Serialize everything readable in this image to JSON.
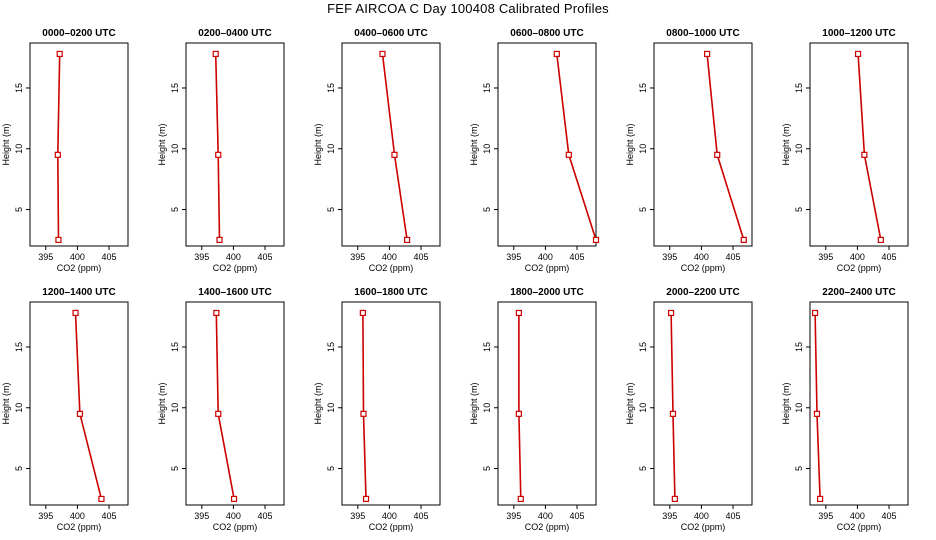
{
  "title": "FEF AIRCOA C  Day 100408  Calibrated Profiles",
  "chart_data": {
    "type": "line",
    "xlabel": "CO2 (ppm)",
    "ylabel": "Height (m)",
    "xlim": [
      392.5,
      408
    ],
    "ylim": [
      2,
      18.7
    ],
    "xticks": [
      395,
      400,
      405
    ],
    "yticks": [
      5,
      10,
      15
    ],
    "line_color": "#cc0000",
    "panels": [
      {
        "title": "0000–0200 UTC",
        "series": [
          {
            "x": [
              397.0,
              396.9,
              397.2
            ],
            "y": [
              2.5,
              9.5,
              17.8
            ]
          }
        ]
      },
      {
        "title": "0200–0400 UTC",
        "series": [
          {
            "x": [
              397.8,
              397.6,
              397.2
            ],
            "y": [
              2.5,
              9.5,
              17.8
            ]
          }
        ]
      },
      {
        "title": "0400–0600 UTC",
        "series": [
          {
            "x": [
              402.8,
              400.8,
              398.9
            ],
            "y": [
              2.5,
              9.5,
              17.8
            ]
          }
        ]
      },
      {
        "title": "0600–0800 UTC",
        "series": [
          {
            "x": [
              408.0,
              403.7,
              401.8
            ],
            "y": [
              2.5,
              9.5,
              17.8
            ]
          }
        ]
      },
      {
        "title": "0800–1000 UTC",
        "series": [
          {
            "x": [
              406.7,
              402.5,
              400.9
            ],
            "y": [
              2.5,
              9.5,
              17.8
            ]
          }
        ]
      },
      {
        "title": "1000–1200 UTC",
        "series": [
          {
            "x": [
              403.7,
              401.1,
              400.1
            ],
            "y": [
              2.5,
              9.5,
              17.8
            ]
          }
        ]
      },
      {
        "title": "1200–1400 UTC",
        "series": [
          {
            "x": [
              403.8,
              400.4,
              399.7
            ],
            "y": [
              2.5,
              9.5,
              17.8
            ]
          }
        ]
      },
      {
        "title": "1400–1600 UTC",
        "series": [
          {
            "x": [
              400.1,
              397.6,
              397.3
            ],
            "y": [
              2.5,
              9.5,
              17.8
            ]
          }
        ]
      },
      {
        "title": "1600–1800 UTC",
        "series": [
          {
            "x": [
              396.3,
              395.9,
              395.8
            ],
            "y": [
              2.5,
              9.5,
              17.8
            ]
          }
        ]
      },
      {
        "title": "1800–2000 UTC",
        "series": [
          {
            "x": [
              396.1,
              395.8,
              395.8
            ],
            "y": [
              2.5,
              9.5,
              17.8
            ]
          }
        ]
      },
      {
        "title": "2000–2200 UTC",
        "series": [
          {
            "x": [
              395.8,
              395.5,
              395.2
            ],
            "y": [
              2.5,
              9.5,
              17.8
            ]
          }
        ]
      },
      {
        "title": "2200–2400 UTC",
        "series": [
          {
            "x": [
              394.1,
              393.6,
              393.3
            ],
            "y": [
              2.5,
              9.5,
              17.8
            ]
          }
        ]
      }
    ]
  }
}
